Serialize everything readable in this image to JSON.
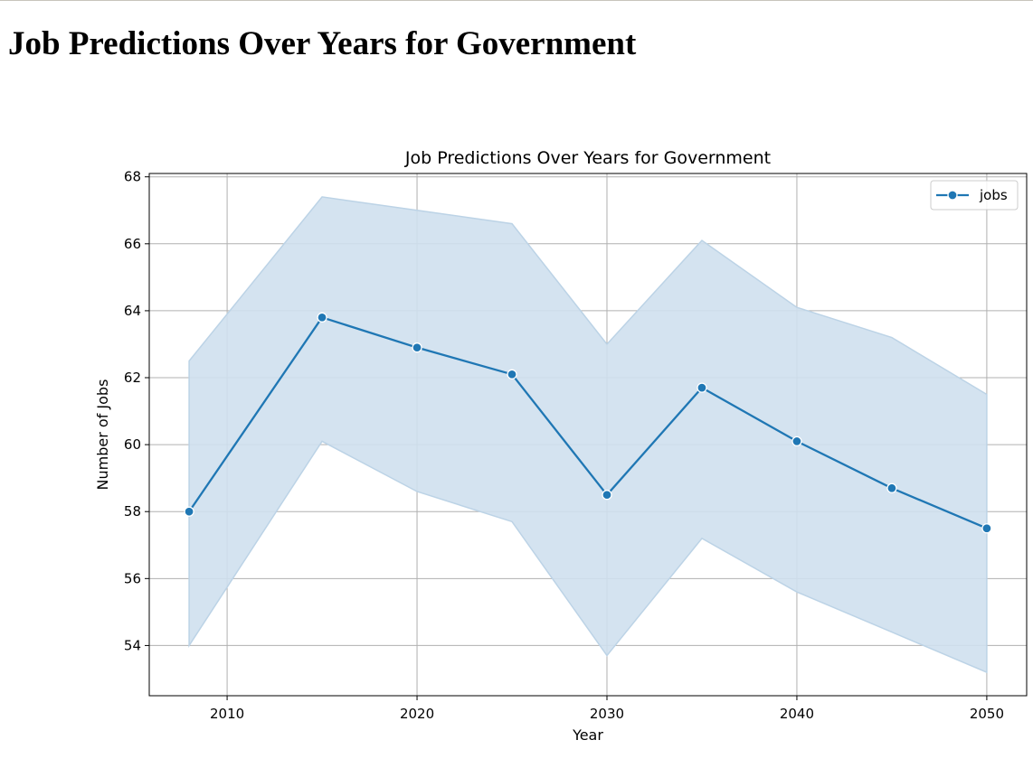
{
  "page": {
    "heading": "Job Predictions Over Years for Government"
  },
  "chart_data": {
    "type": "line",
    "title": "Job Predictions Over Years for Government",
    "xlabel": "Year",
    "ylabel": "Number of Jobs",
    "xlim": [
      2005.9,
      2052.1
    ],
    "ylim": [
      52.5,
      68.1
    ],
    "xticks": [
      2010,
      2020,
      2030,
      2040,
      2050
    ],
    "yticks": [
      54,
      56,
      58,
      60,
      62,
      64,
      66,
      68
    ],
    "grid": true,
    "legend_position": "top-right",
    "series": [
      {
        "name": "jobs",
        "color": "#1f77b4",
        "marker": "circle",
        "x": [
          2008,
          2015,
          2020,
          2025,
          2030,
          2035,
          2040,
          2045,
          2050
        ],
        "values": [
          58.0,
          63.8,
          62.9,
          62.1,
          58.5,
          61.7,
          60.1,
          58.7,
          57.5
        ],
        "ci_lower": [
          54.0,
          60.1,
          58.6,
          57.7,
          53.7,
          57.2,
          55.6,
          54.4,
          53.2
        ],
        "ci_upper": [
          62.5,
          67.4,
          67.0,
          66.6,
          63.0,
          66.1,
          64.1,
          63.2,
          61.5
        ]
      }
    ],
    "band_color": "#cfe0ee"
  }
}
